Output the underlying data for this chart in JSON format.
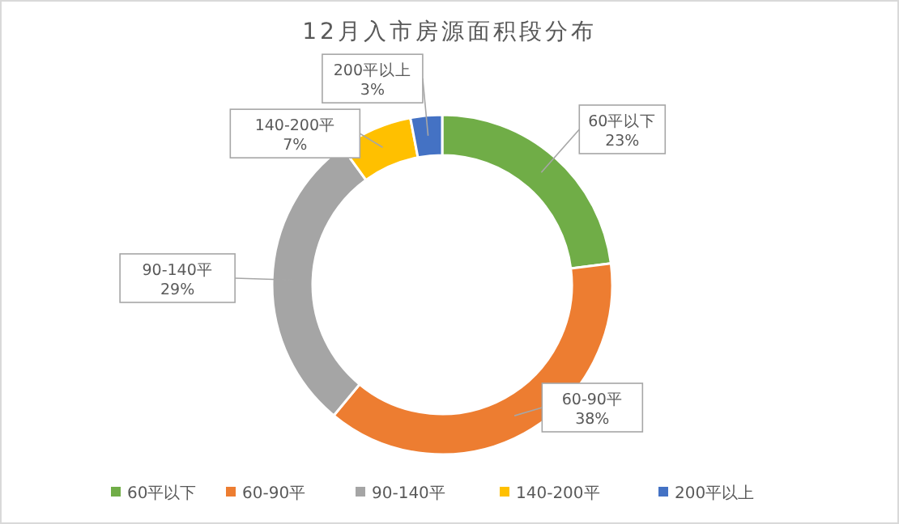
{
  "chart_data": {
    "type": "donut",
    "title": "12月入市房源面积段分布",
    "categories": [
      "60平以下",
      "60-90平",
      "90-140平",
      "140-200平",
      "200平以上"
    ],
    "values": [
      23,
      38,
      29,
      7,
      3
    ],
    "colors": [
      "#70ad47",
      "#ed7d31",
      "#a5a5a5",
      "#ffc000",
      "#4472c4"
    ],
    "value_labels": [
      "23%",
      "38%",
      "29%",
      "7%",
      "3%"
    ],
    "legend": "bottom"
  }
}
